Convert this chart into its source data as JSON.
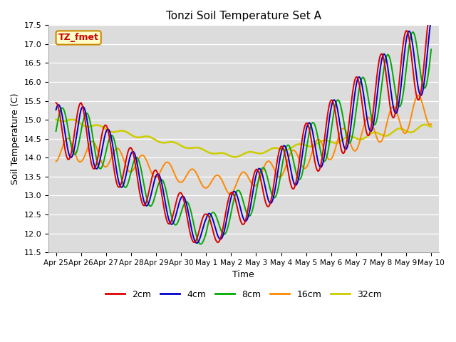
{
  "title": "Tonzi Soil Temperature Set A",
  "xlabel": "Time",
  "ylabel": "Soil Temperature (C)",
  "ylim": [
    11.5,
    17.5
  ],
  "yticks": [
    11.5,
    12.0,
    12.5,
    13.0,
    13.5,
    14.0,
    14.5,
    15.0,
    15.5,
    16.0,
    16.5,
    17.0,
    17.5
  ],
  "x_labels": [
    "Apr 25",
    "Apr 26",
    "Apr 27",
    "Apr 28",
    "Apr 29",
    "Apr 30",
    "May 1",
    "May 2",
    "May 3",
    "May 4",
    "May 5",
    "May 6",
    "May 7",
    "May 8",
    "May 9",
    "May 10"
  ],
  "legend_label": "TZ_fmet",
  "series": {
    "2cm": {
      "color": "#dd0000",
      "lw": 1.4
    },
    "4cm": {
      "color": "#0000cc",
      "lw": 1.4
    },
    "8cm": {
      "color": "#00aa00",
      "lw": 1.4
    },
    "16cm": {
      "color": "#ff8800",
      "lw": 1.4
    },
    "32cm": {
      "color": "#cccc00",
      "lw": 1.8
    }
  },
  "plot_bg": "#dcdcdc",
  "annotation_bg": "#ffffcc",
  "annotation_border": "#cc8800",
  "annotation_text": "#cc0000",
  "n_points": 720
}
